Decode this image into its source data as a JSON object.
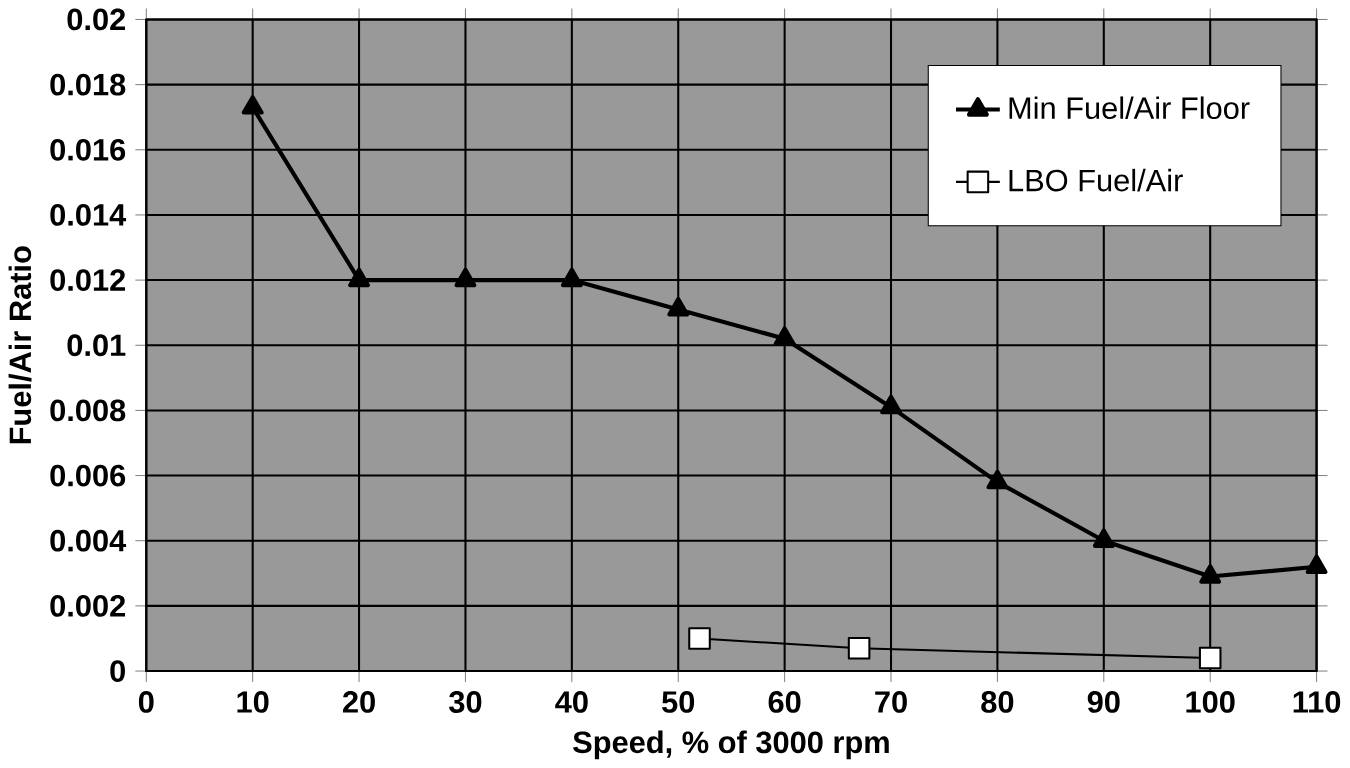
{
  "chart_data": {
    "type": "line",
    "xlabel": "Speed, % of 3000 rpm",
    "ylabel": "Fuel/Air Ratio",
    "xlim": [
      0,
      110
    ],
    "xticks": [
      0,
      10,
      20,
      30,
      40,
      50,
      60,
      70,
      80,
      90,
      100,
      110
    ],
    "ylim": [
      0,
      0.02
    ],
    "yticks": [
      0,
      0.002,
      0.004,
      0.006,
      0.008,
      0.01,
      0.012,
      0.014,
      0.016,
      0.018,
      0.02
    ],
    "grid": true,
    "legend": "top right",
    "series": [
      {
        "name": "Min Fuel/Air Floor",
        "color": "#000000",
        "marker": "triangle",
        "x": [
          10,
          20,
          30,
          40,
          50,
          60,
          70,
          80,
          90,
          100,
          110
        ],
        "values": [
          0.0173,
          0.012,
          0.012,
          0.012,
          0.0111,
          0.0102,
          0.0081,
          0.0058,
          0.004,
          0.0029,
          0.0032
        ]
      },
      {
        "name": "LBO Fuel/Air",
        "color": "#000000",
        "marker": "square",
        "x": [
          52,
          67,
          100
        ],
        "values": [
          0.001,
          0.0007,
          0.0004
        ]
      }
    ]
  }
}
